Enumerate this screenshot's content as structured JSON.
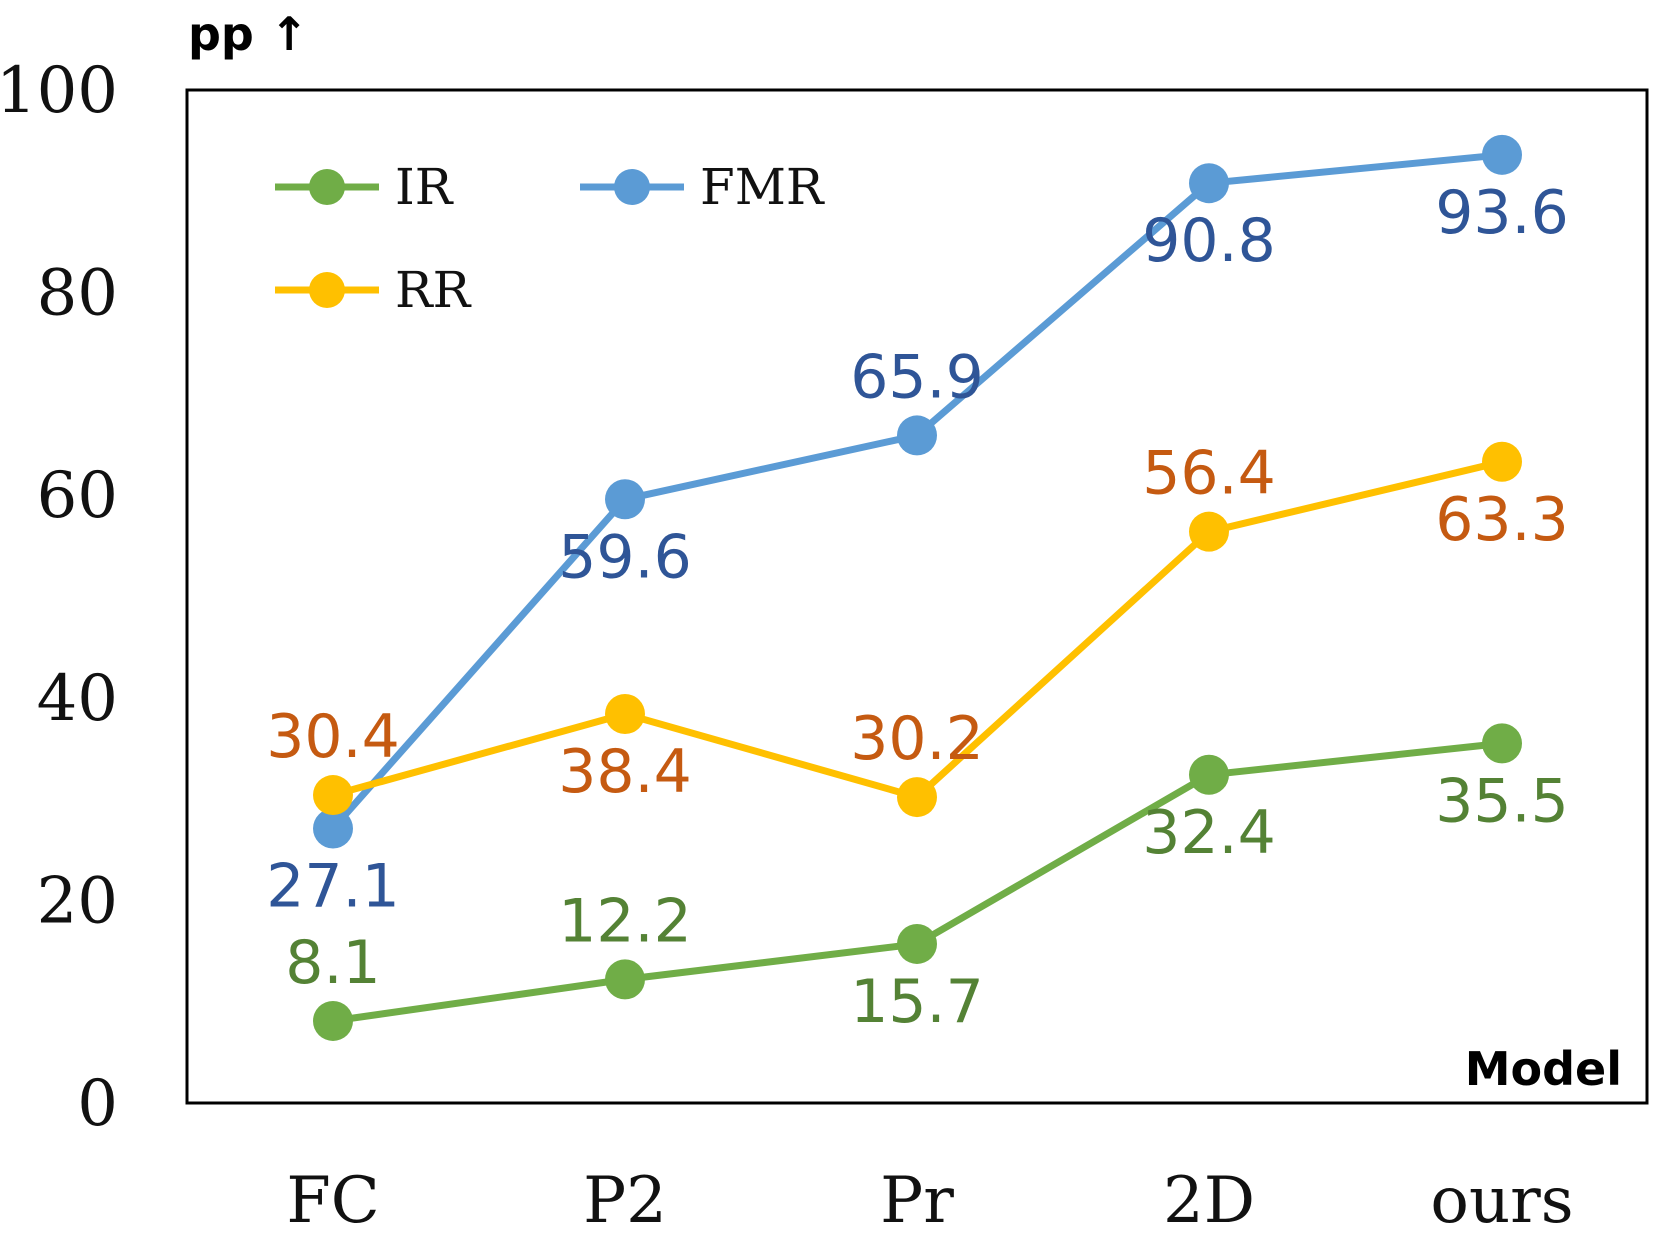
{
  "chart_data": {
    "type": "line",
    "title": "",
    "xlabel": "Model",
    "ylabel": "pp ↑",
    "categories": [
      "FC",
      "P2",
      "Pr",
      "2D",
      "ours"
    ],
    "ylim": [
      0,
      100
    ],
    "yticks": [
      0,
      20,
      40,
      60,
      80,
      100
    ],
    "grid": false,
    "legend_position": "top-left",
    "series": [
      {
        "name": "IR",
        "values": [
          8.1,
          12.2,
          15.7,
          32.4,
          35.5
        ],
        "line_color": "#70ad47",
        "label_color": "#548235",
        "labels_above": [
          true,
          true,
          false,
          false,
          false
        ]
      },
      {
        "name": "FMR",
        "values": [
          27.1,
          59.6,
          65.9,
          90.8,
          93.6
        ],
        "line_color": "#5b9bd5",
        "label_color": "#2f5597",
        "labels_above": [
          false,
          false,
          true,
          false,
          false
        ]
      },
      {
        "name": "RR",
        "values": [
          30.4,
          38.4,
          30.2,
          56.4,
          63.3
        ],
        "line_color": "#ffc000",
        "label_color": "#c55a11",
        "labels_above": [
          true,
          false,
          true,
          true,
          false
        ]
      }
    ]
  }
}
